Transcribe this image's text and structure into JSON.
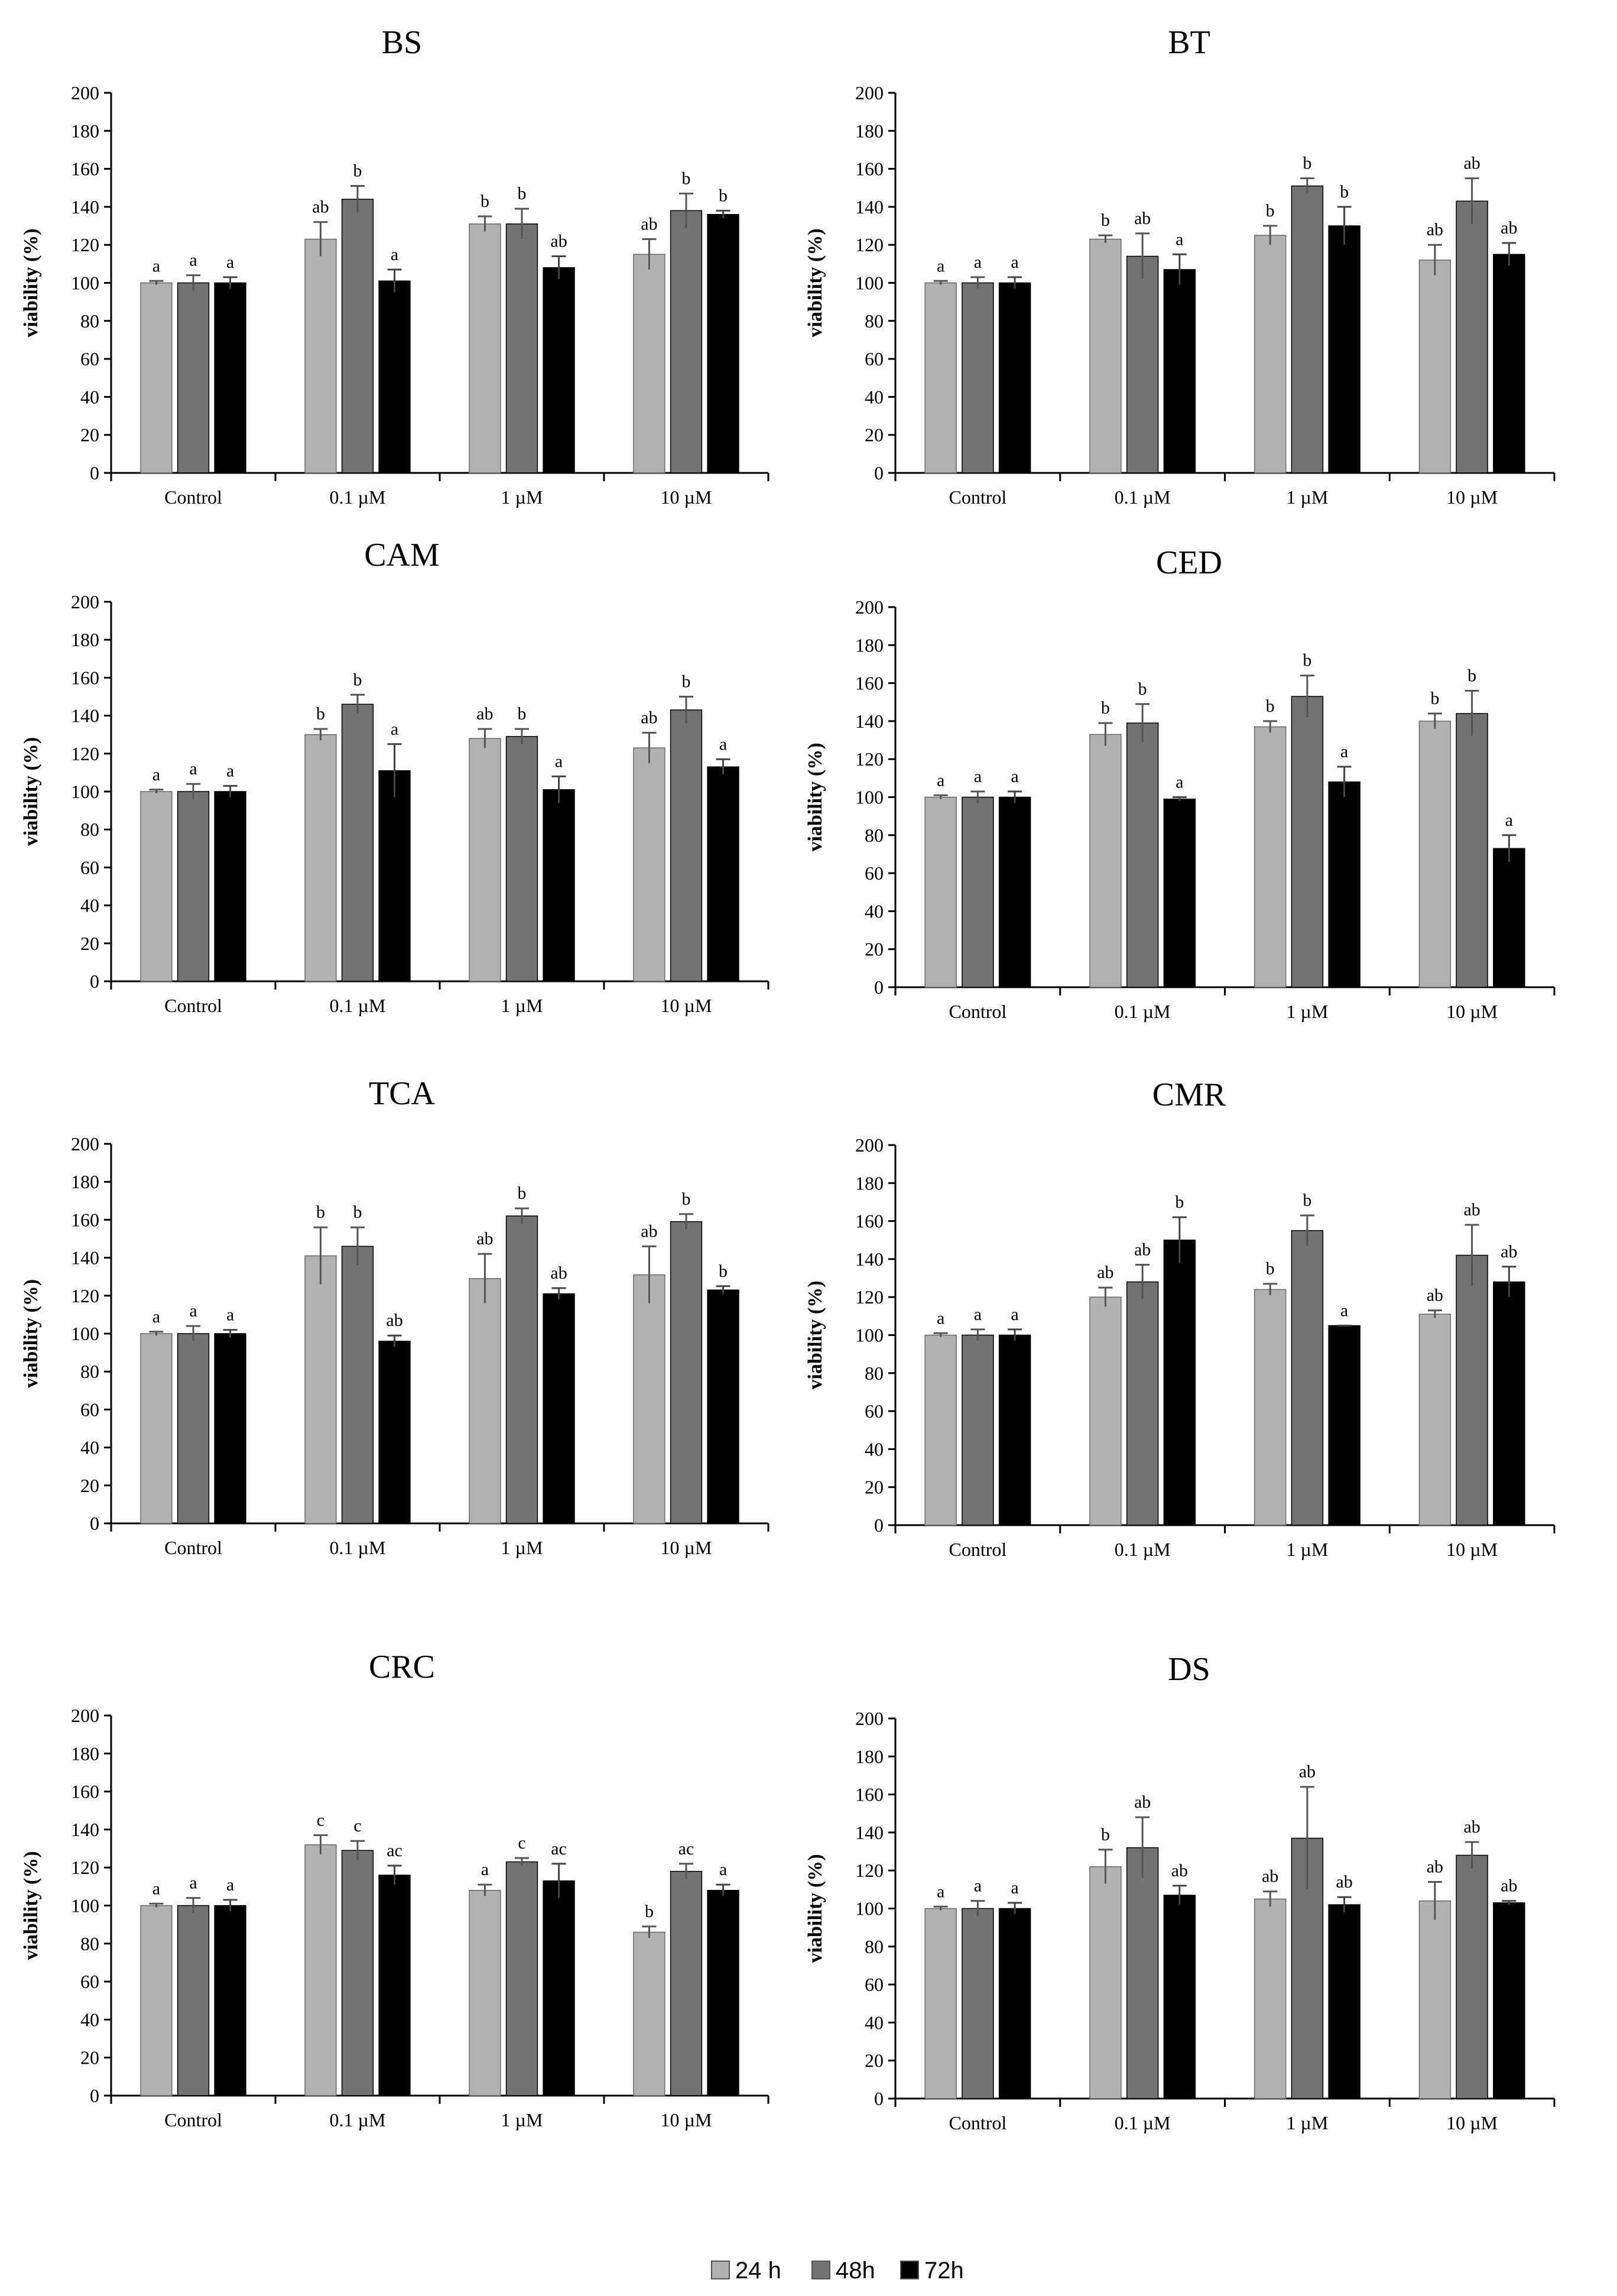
{
  "legend": [
    {
      "name": "24 h",
      "color": "#b3b0b0"
    },
    {
      "name": "48h",
      "color": "#747272"
    },
    {
      "name": "72h",
      "color": "#000000"
    }
  ],
  "chart_data": [
    {
      "type": "bar",
      "title": "BS",
      "ylabel": "viability (%)",
      "ylim": [
        0,
        200
      ],
      "yticks": [
        0,
        20,
        40,
        60,
        80,
        100,
        120,
        140,
        160,
        180,
        200
      ],
      "categories": [
        "Control",
        "0.1 µM",
        "1 µM",
        "10 µM"
      ],
      "series": [
        {
          "name": "24 h",
          "values": [
            100,
            123,
            131,
            115
          ],
          "errors": [
            1,
            9,
            4,
            8
          ],
          "letters": [
            "a",
            "ab",
            "b",
            "ab"
          ]
        },
        {
          "name": "48h",
          "values": [
            100,
            144,
            131,
            138
          ],
          "errors": [
            4,
            7,
            8,
            9
          ],
          "letters": [
            "a",
            "b",
            "b",
            "b"
          ]
        },
        {
          "name": "72h",
          "values": [
            100,
            101,
            108,
            136
          ],
          "errors": [
            3,
            6,
            6,
            2
          ],
          "letters": [
            "a",
            "a",
            "ab",
            "b"
          ]
        }
      ]
    },
    {
      "type": "bar",
      "title": "BT",
      "ylabel": "viability (%)",
      "ylim": [
        0,
        200
      ],
      "yticks": [
        0,
        20,
        40,
        60,
        80,
        100,
        120,
        140,
        160,
        180,
        200
      ],
      "categories": [
        "Control",
        "0.1 µM",
        "1 µM",
        "10 µM"
      ],
      "series": [
        {
          "name": "24 h",
          "values": [
            100,
            123,
            125,
            112
          ],
          "errors": [
            1,
            2,
            5,
            8
          ],
          "letters": [
            "a",
            "b",
            "b",
            "ab"
          ]
        },
        {
          "name": "48h",
          "values": [
            100,
            114,
            151,
            143
          ],
          "errors": [
            3,
            12,
            4,
            12
          ],
          "letters": [
            "a",
            "ab",
            "b",
            "ab"
          ]
        },
        {
          "name": "72h",
          "values": [
            100,
            107,
            130,
            115
          ],
          "errors": [
            3,
            8,
            10,
            6
          ],
          "letters": [
            "a",
            "a",
            "b",
            "ab"
          ]
        }
      ]
    },
    {
      "type": "bar",
      "title": "CAM",
      "ylabel": "viability (%)",
      "ylim": [
        0,
        200
      ],
      "yticks": [
        0,
        20,
        40,
        60,
        80,
        100,
        120,
        140,
        160,
        180,
        200
      ],
      "categories": [
        "Control",
        "0.1 µM",
        "1 µM",
        "10 µM"
      ],
      "series": [
        {
          "name": "24 h",
          "values": [
            100,
            130,
            128,
            123
          ],
          "errors": [
            1,
            3,
            5,
            8
          ],
          "letters": [
            "a",
            "b",
            "ab",
            "ab"
          ]
        },
        {
          "name": "48h",
          "values": [
            100,
            146,
            129,
            143
          ],
          "errors": [
            4,
            5,
            4,
            7
          ],
          "letters": [
            "a",
            "b",
            "b",
            "b"
          ]
        },
        {
          "name": "72h",
          "values": [
            100,
            111,
            101,
            113
          ],
          "errors": [
            3,
            14,
            7,
            4
          ],
          "letters": [
            "a",
            "a",
            "a",
            "a"
          ]
        }
      ]
    },
    {
      "type": "bar",
      "title": "CED",
      "ylabel": "viability (%)",
      "ylim": [
        0,
        200
      ],
      "yticks": [
        0,
        20,
        40,
        60,
        80,
        100,
        120,
        140,
        160,
        180,
        200
      ],
      "categories": [
        "Control",
        "0.1 µM",
        "1 µM",
        "10 µM"
      ],
      "series": [
        {
          "name": "24 h",
          "values": [
            100,
            133,
            137,
            140
          ],
          "errors": [
            1,
            6,
            3,
            4
          ],
          "letters": [
            "a",
            "b",
            "b",
            "b"
          ]
        },
        {
          "name": "48h",
          "values": [
            100,
            139,
            153,
            144
          ],
          "errors": [
            3,
            10,
            11,
            12
          ],
          "letters": [
            "a",
            "b",
            "b",
            "b"
          ]
        },
        {
          "name": "72h",
          "values": [
            100,
            99,
            108,
            73
          ],
          "errors": [
            3,
            1,
            8,
            7
          ],
          "letters": [
            "a",
            "a",
            "a",
            "a"
          ]
        }
      ]
    },
    {
      "type": "bar",
      "title": "TCA",
      "ylabel": "viability (%)",
      "ylim": [
        0,
        200
      ],
      "yticks": [
        0,
        20,
        40,
        60,
        80,
        100,
        120,
        140,
        160,
        180,
        200
      ],
      "categories": [
        "Control",
        "0.1 µM",
        "1 µM",
        "10 µM"
      ],
      "series": [
        {
          "name": "24 h",
          "values": [
            100,
            141,
            129,
            131
          ],
          "errors": [
            1,
            15,
            13,
            15
          ],
          "letters": [
            "a",
            "b",
            "ab",
            "ab"
          ]
        },
        {
          "name": "48h",
          "values": [
            100,
            146,
            162,
            159
          ],
          "errors": [
            4,
            10,
            4,
            4
          ],
          "letters": [
            "a",
            "b",
            "b",
            "b"
          ]
        },
        {
          "name": "72h",
          "values": [
            100,
            96,
            121,
            123
          ],
          "errors": [
            2,
            3,
            3,
            2
          ],
          "letters": [
            "a",
            "ab",
            "ab",
            "b"
          ]
        }
      ]
    },
    {
      "type": "bar",
      "title": "CMR",
      "ylabel": "viability (%)",
      "ylim": [
        0,
        200
      ],
      "yticks": [
        0,
        20,
        40,
        60,
        80,
        100,
        120,
        140,
        160,
        180,
        200
      ],
      "categories": [
        "Control",
        "0.1 µM",
        "1 µM",
        "10 µM"
      ],
      "series": [
        {
          "name": "24 h",
          "values": [
            100,
            120,
            124,
            111
          ],
          "errors": [
            1,
            5,
            3,
            2
          ],
          "letters": [
            "a",
            "ab",
            "b",
            "ab"
          ]
        },
        {
          "name": "48h",
          "values": [
            100,
            128,
            155,
            142
          ],
          "errors": [
            3,
            9,
            8,
            16
          ],
          "letters": [
            "a",
            "ab",
            "b",
            "ab"
          ]
        },
        {
          "name": "72h",
          "values": [
            100,
            150,
            105,
            128
          ],
          "errors": [
            3,
            12,
            0,
            8
          ],
          "letters": [
            "a",
            "b",
            "a",
            "ab"
          ]
        }
      ]
    },
    {
      "type": "bar",
      "title": "CRC",
      "ylabel": "viability (%)",
      "ylim": [
        0,
        200
      ],
      "yticks": [
        0,
        20,
        40,
        60,
        80,
        100,
        120,
        140,
        160,
        180,
        200
      ],
      "categories": [
        "Control",
        "0.1 µM",
        "1 µM",
        "10 µM"
      ],
      "series": [
        {
          "name": "24 h",
          "values": [
            100,
            132,
            108,
            86
          ],
          "errors": [
            1,
            5,
            3,
            3
          ],
          "letters": [
            "a",
            "c",
            "a",
            "b"
          ]
        },
        {
          "name": "48h",
          "values": [
            100,
            129,
            123,
            118
          ],
          "errors": [
            4,
            5,
            2,
            4
          ],
          "letters": [
            "a",
            "c",
            "c",
            "ac"
          ]
        },
        {
          "name": "72h",
          "values": [
            100,
            116,
            113,
            108
          ],
          "errors": [
            3,
            5,
            9,
            3
          ],
          "letters": [
            "a",
            "ac",
            "ac",
            "a"
          ]
        }
      ]
    },
    {
      "type": "bar",
      "title": "DS",
      "ylabel": "viability (%)",
      "ylim": [
        0,
        200
      ],
      "yticks": [
        0,
        20,
        40,
        60,
        80,
        100,
        120,
        140,
        160,
        180,
        200
      ],
      "categories": [
        "Control",
        "0.1 µM",
        "1 µM",
        "10 µM"
      ],
      "series": [
        {
          "name": "24 h",
          "values": [
            100,
            122,
            105,
            104
          ],
          "errors": [
            1,
            9,
            4,
            10
          ],
          "letters": [
            "a",
            "b",
            "ab",
            "ab"
          ]
        },
        {
          "name": "48h",
          "values": [
            100,
            132,
            137,
            128
          ],
          "errors": [
            4,
            16,
            27,
            7
          ],
          "letters": [
            "a",
            "ab",
            "ab",
            "ab"
          ]
        },
        {
          "name": "72h",
          "values": [
            100,
            107,
            102,
            103
          ],
          "errors": [
            3,
            5,
            4,
            1
          ],
          "letters": [
            "a",
            "ab",
            "ab",
            "ab"
          ]
        }
      ]
    }
  ]
}
